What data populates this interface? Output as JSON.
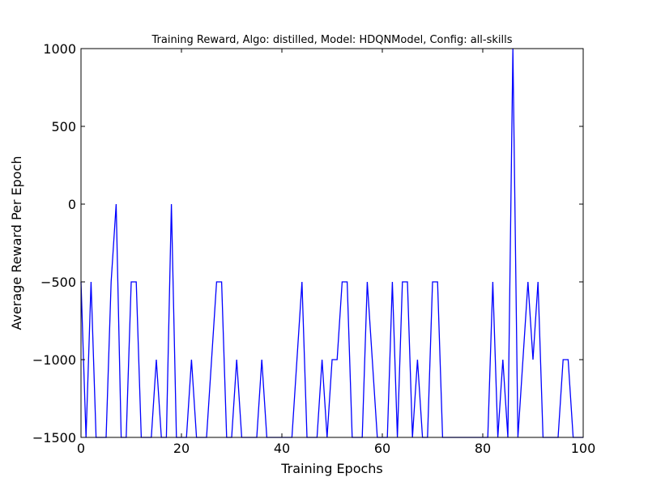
{
  "chart_data": {
    "type": "line",
    "title": "Training Reward, Algo: distilled, Model: HDQNModel, Config: all-skills",
    "xlabel": "Training Epochs",
    "ylabel": "Average Reward Per Epoch",
    "xlim": [
      0,
      100
    ],
    "ylim": [
      -1500,
      1000
    ],
    "xticks": [
      0,
      20,
      40,
      60,
      80,
      100
    ],
    "yticks": [
      -1500,
      -1000,
      -500,
      0,
      500,
      1000
    ],
    "xtick_labels": [
      "0",
      "20",
      "40",
      "60",
      "80",
      "100"
    ],
    "ytick_labels": [
      "−1500",
      "−1000",
      "−500",
      "0",
      "500",
      "1000"
    ],
    "grid": false,
    "series": [
      {
        "color": "#0000ff",
        "x": [
          0,
          1,
          2,
          3,
          4,
          5,
          6,
          7,
          8,
          9,
          10,
          11,
          12,
          13,
          14,
          15,
          16,
          17,
          18,
          19,
          20,
          21,
          22,
          23,
          24,
          25,
          26,
          27,
          28,
          29,
          30,
          31,
          32,
          33,
          34,
          35,
          36,
          37,
          38,
          39,
          40,
          41,
          42,
          43,
          44,
          45,
          46,
          47,
          48,
          49,
          50,
          51,
          52,
          53,
          54,
          55,
          56,
          57,
          58,
          59,
          60,
          61,
          62,
          63,
          64,
          65,
          66,
          67,
          68,
          69,
          70,
          71,
          72,
          73,
          74,
          75,
          76,
          77,
          78,
          79,
          80,
          81,
          82,
          83,
          84,
          85,
          86,
          87,
          88,
          89,
          90,
          91,
          92,
          93,
          94,
          95,
          96,
          97,
          98,
          99,
          100
        ],
        "y": [
          -500,
          -1500,
          -500,
          -1500,
          -1500,
          -1500,
          -500,
          0,
          -1500,
          -1500,
          -500,
          -500,
          -1500,
          -1500,
          -1500,
          -1000,
          -1500,
          -1500,
          0,
          -1500,
          -1500,
          -1500,
          -1000,
          -1500,
          -1500,
          -1500,
          -1000,
          -500,
          -500,
          -1500,
          -1500,
          -1000,
          -1500,
          -1500,
          -1500,
          -1500,
          -1000,
          -1500,
          -1500,
          -1500,
          -1500,
          -1500,
          -1500,
          -1000,
          -500,
          -1500,
          -1500,
          -1500,
          -1000,
          -1500,
          -1000,
          -1000,
          -500,
          -500,
          -1500,
          -1500,
          -1500,
          -500,
          -1000,
          -1500,
          -1500,
          -1500,
          -500,
          -1500,
          -500,
          -500,
          -1500,
          -1000,
          -1500,
          -1500,
          -500,
          -500,
          -1500,
          -1500,
          -1500,
          -1500,
          -1500,
          -1500,
          -1500,
          -1500,
          -1500,
          -1500,
          -500,
          -1500,
          -1000,
          -1500,
          1000,
          -1500,
          -1000,
          -500,
          -1000,
          -500,
          -1500,
          -1500,
          -1500,
          -1500,
          -1000,
          -1000,
          -1500,
          -1500,
          -1500
        ]
      }
    ]
  }
}
